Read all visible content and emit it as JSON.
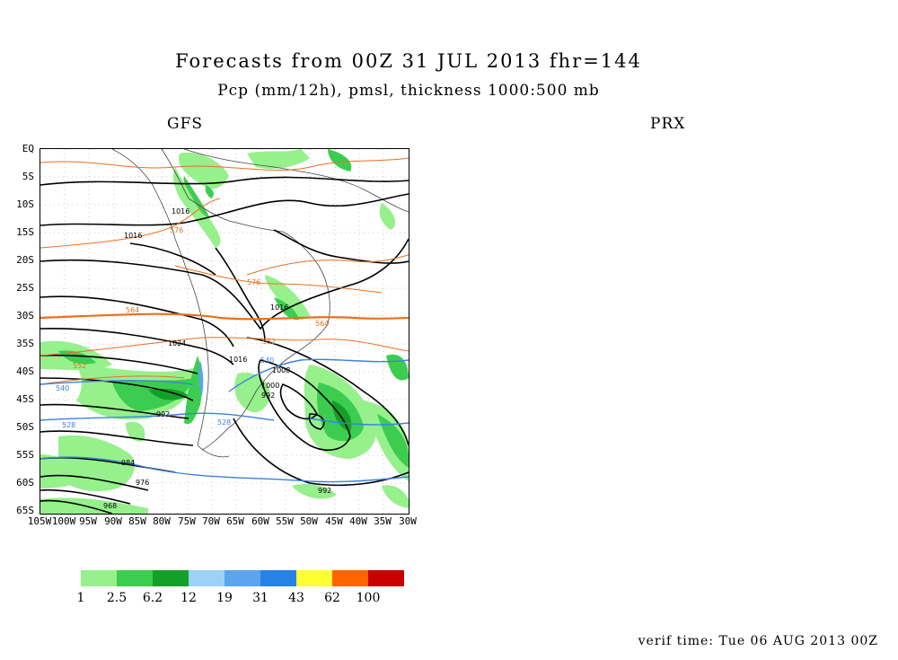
{
  "title": "Forecasts from 00Z 31 JUL 2013   fhr=144",
  "subtitle": "Pcp (mm/12h), pmsl, thickness 1000:500 mb",
  "model_left": "GFS",
  "model_right": "PRX",
  "verif_time": "verif time: Tue 06 AUG 2013 00Z",
  "lat_labels": [
    "EQ",
    "5S",
    "10S",
    "15S",
    "20S",
    "25S",
    "30S",
    "35S",
    "40S",
    "45S",
    "50S",
    "55S",
    "60S",
    "65S"
  ],
  "lon_labels": [
    "105W",
    "100W",
    "95W",
    "90W",
    "85W",
    "80W",
    "75W",
    "70W",
    "65W",
    "60W",
    "55W",
    "50W",
    "45W",
    "40W",
    "35W",
    "30W"
  ],
  "legend": {
    "labels": [
      "1",
      "2.5",
      "6.2",
      "12",
      "19",
      "31",
      "43",
      "62",
      "100"
    ],
    "colors": [
      "#96f08c",
      "#3ccd50",
      "#14a028",
      "#9bd2f5",
      "#5aa5eb",
      "#2882e6",
      "#ffff32",
      "#ff6400",
      "#c80000"
    ]
  },
  "contour_labels": {
    "pressure": [
      "1016",
      "1016",
      "1016",
      "1024",
      "1016",
      "1008",
      "1000",
      "992",
      "992",
      "984",
      "976",
      "968",
      "992"
    ],
    "thickness": [
      "576",
      "576",
      "564",
      "564",
      "552",
      "552",
      "540",
      "540",
      "528",
      "528"
    ]
  },
  "colors": {
    "pressure": "#000000",
    "thickness_warm": "#e87020",
    "thickness_cold": "#3c82dc"
  }
}
